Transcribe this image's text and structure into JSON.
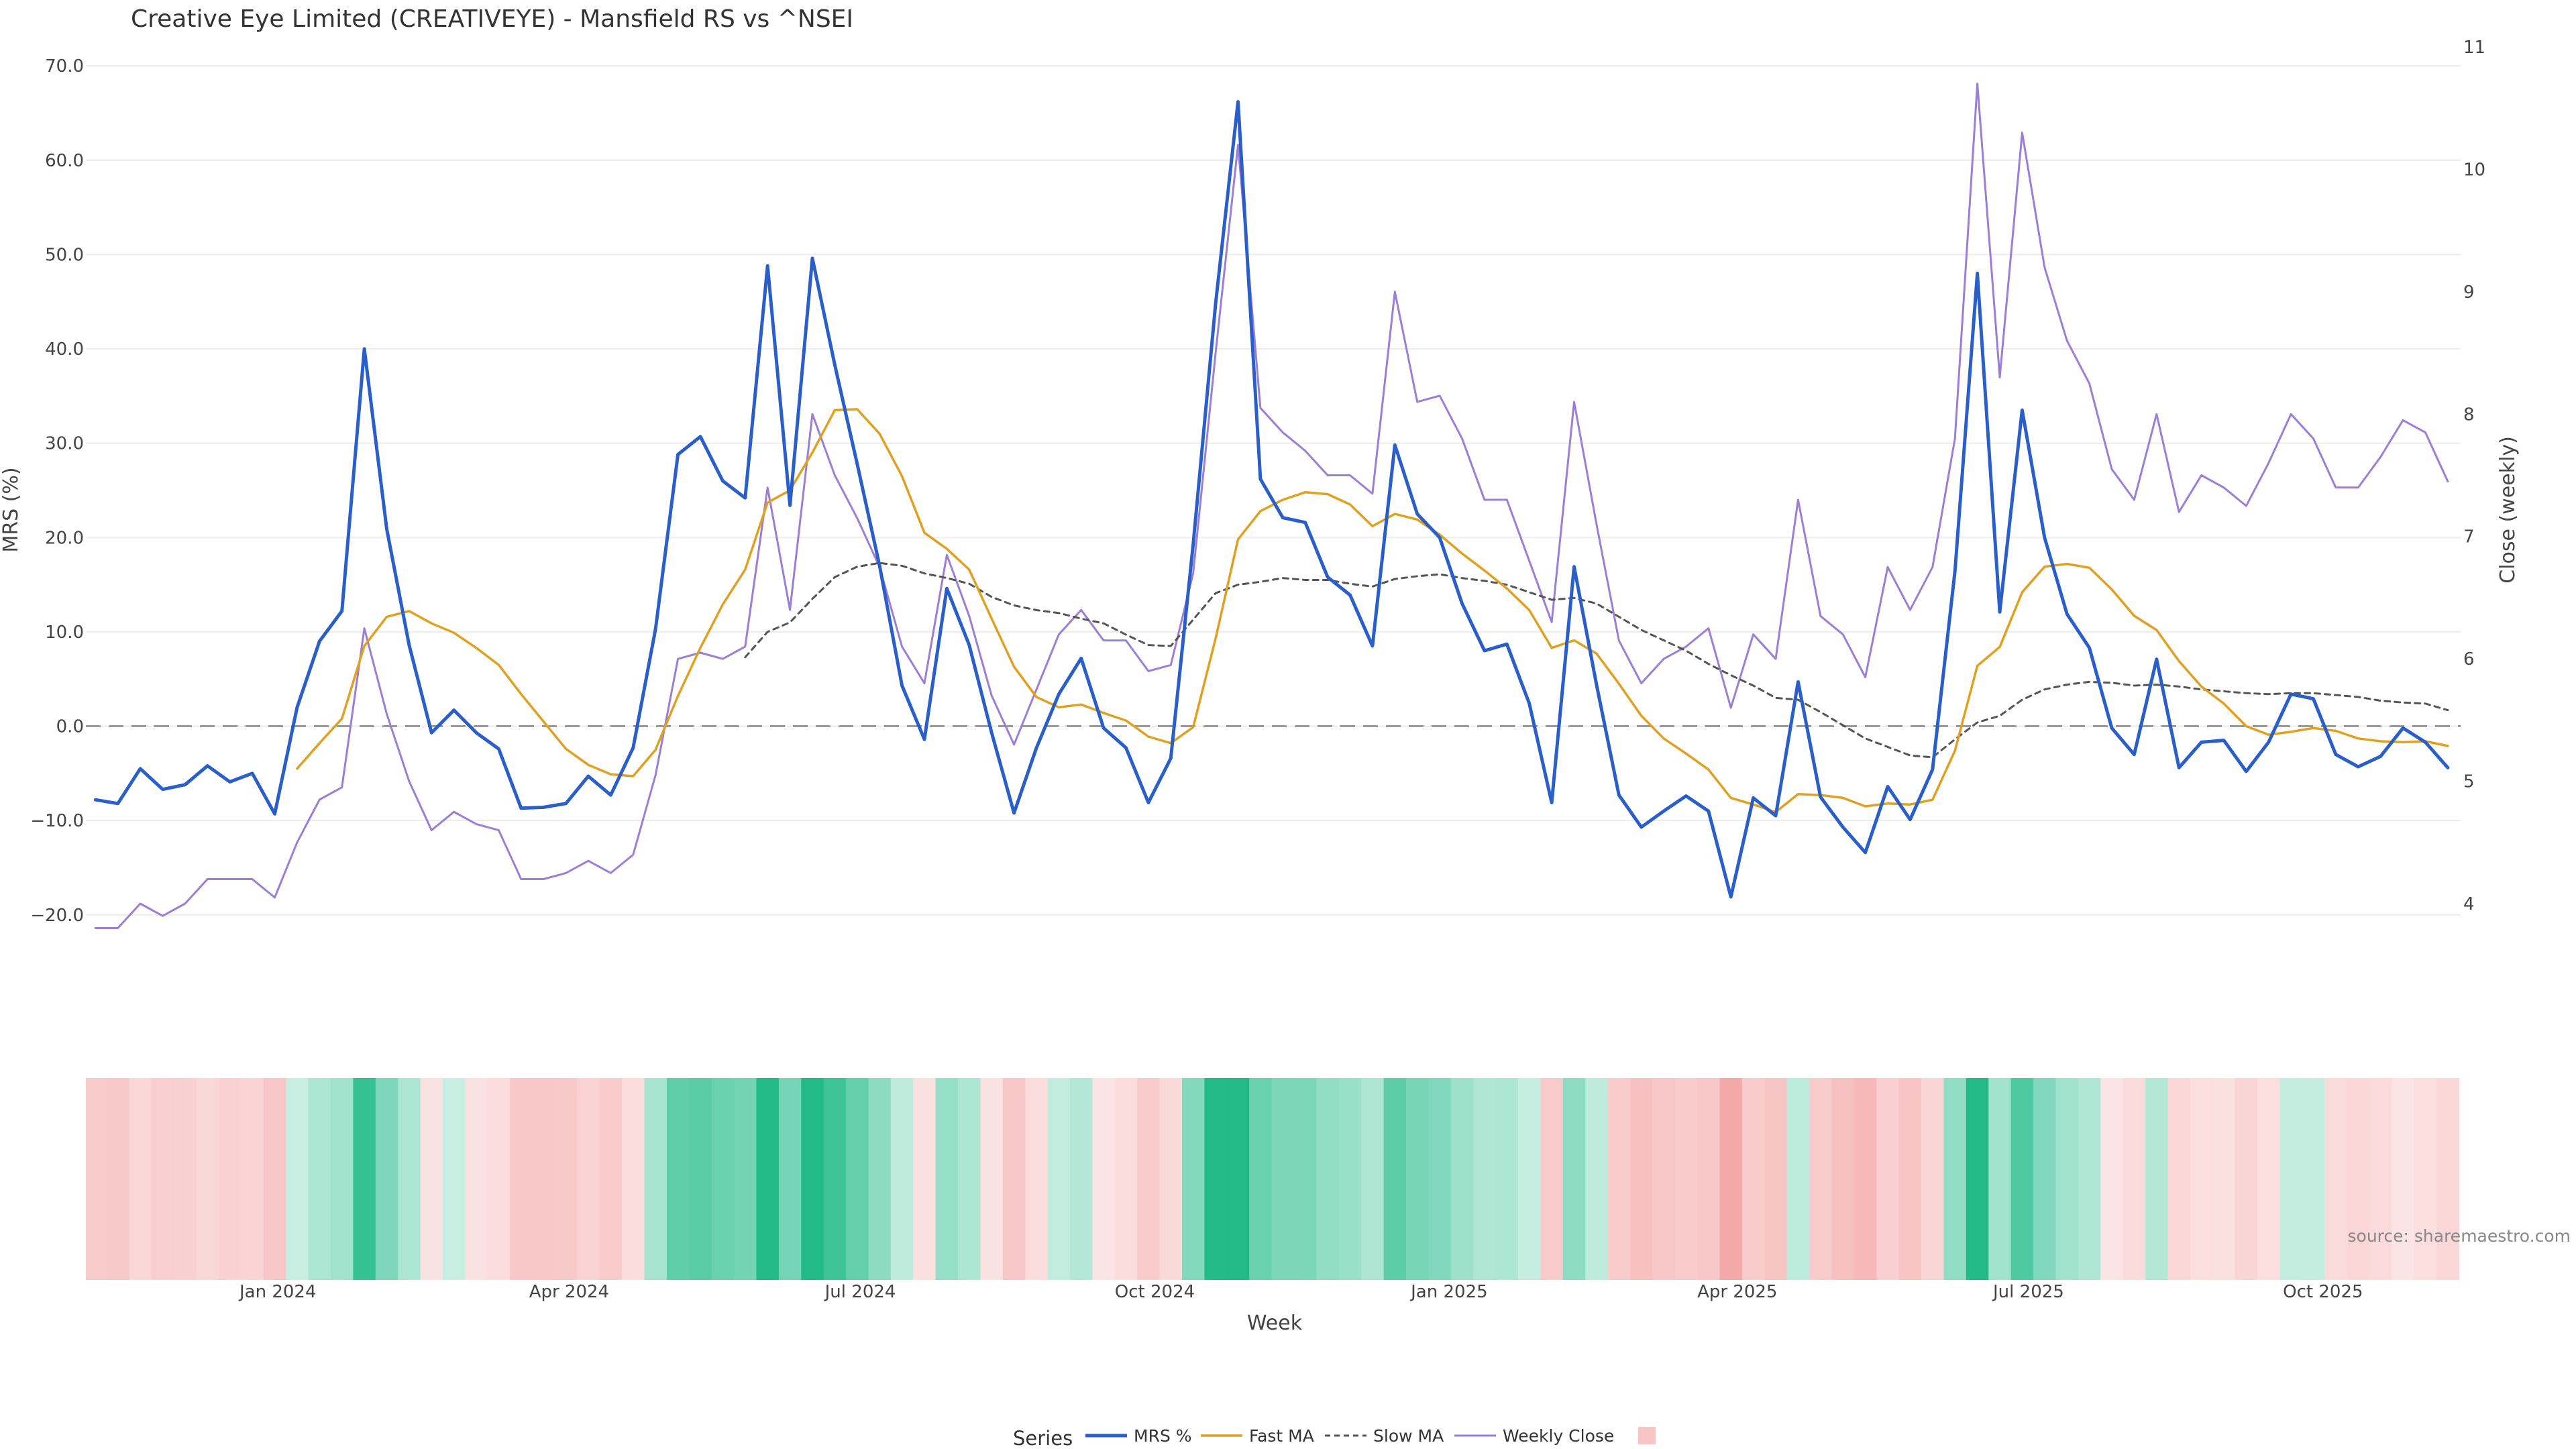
{
  "title": "Creative Eye Limited (CREATIVEYE) - Mansfield RS vs ^NSEI",
  "source": "source: sharemaestro.com",
  "colors": {
    "mrs": "#2a5fc9",
    "fast_ma": "#e0a020",
    "slow_ma": "#555555",
    "close": "#9b7fd6",
    "zero_line": "#999999",
    "grid": "#ececec",
    "positive": "#22bb88",
    "negative": "#f08888"
  },
  "legend": {
    "title": "Series",
    "items": [
      "MRS %",
      "Fast MA",
      "Slow MA",
      "Weekly Close",
      ""
    ]
  },
  "chart_data": {
    "type": "line",
    "x_dates": [
      "2023-11-05",
      "2023-11-12",
      "2023-11-19",
      "2023-11-26",
      "2023-12-03",
      "2023-12-10",
      "2023-12-17",
      "2023-12-24",
      "2023-12-31",
      "2024-01-07",
      "2024-01-14",
      "2024-01-21",
      "2024-01-28",
      "2024-02-04",
      "2024-02-11",
      "2024-02-18",
      "2024-02-25",
      "2024-03-03",
      "2024-03-10",
      "2024-03-17",
      "2024-03-24",
      "2024-03-31",
      "2024-04-07",
      "2024-04-14",
      "2024-04-21",
      "2024-04-28",
      "2024-05-05",
      "2024-05-12",
      "2024-05-19",
      "2024-05-26",
      "2024-06-02",
      "2024-06-09",
      "2024-06-16",
      "2024-06-23",
      "2024-06-30",
      "2024-07-07",
      "2024-07-14",
      "2024-07-21",
      "2024-07-28",
      "2024-08-04",
      "2024-08-11",
      "2024-08-18",
      "2024-08-25",
      "2024-09-01",
      "2024-09-08",
      "2024-09-15",
      "2024-09-22",
      "2024-09-29",
      "2024-10-06",
      "2024-10-13",
      "2024-10-20",
      "2024-10-27",
      "2024-11-03",
      "2024-11-10",
      "2024-11-17",
      "2024-11-24",
      "2024-12-01",
      "2024-12-08",
      "2024-12-15",
      "2024-12-22",
      "2024-12-29",
      "2025-01-05",
      "2025-01-12",
      "2025-01-19",
      "2025-01-26",
      "2025-02-02",
      "2025-02-09",
      "2025-02-16",
      "2025-02-23",
      "2025-03-02",
      "2025-03-09",
      "2025-03-16",
      "2025-03-23",
      "2025-03-30",
      "2025-04-06",
      "2025-04-13",
      "2025-04-20",
      "2025-04-27",
      "2025-05-04",
      "2025-05-11",
      "2025-05-18",
      "2025-05-25",
      "2025-06-01",
      "2025-06-08",
      "2025-06-15",
      "2025-06-22",
      "2025-06-29",
      "2025-07-06",
      "2025-07-13",
      "2025-07-20",
      "2025-07-27",
      "2025-08-03",
      "2025-08-10",
      "2025-08-17",
      "2025-08-24",
      "2025-08-31",
      "2025-09-07",
      "2025-09-14",
      "2025-09-21",
      "2025-09-28",
      "2025-10-05",
      "2025-10-12",
      "2025-10-19",
      "2025-10-26",
      "2025-11-02",
      "2025-11-09"
    ],
    "x_axis": {
      "label": "Week",
      "range": [
        "2023-11-02",
        "2025-11-13"
      ],
      "ticks": [
        {
          "date": "2024-01-01",
          "label": "Jan 2024"
        },
        {
          "date": "2024-04-01",
          "label": "Apr 2024"
        },
        {
          "date": "2024-07-01",
          "label": "Jul 2024"
        },
        {
          "date": "2024-10-01",
          "label": "Oct 2024"
        },
        {
          "date": "2025-01-01",
          "label": "Jan 2025"
        },
        {
          "date": "2025-04-01",
          "label": "Apr 2025"
        },
        {
          "date": "2025-07-01",
          "label": "Jul 2025"
        },
        {
          "date": "2025-10-01",
          "label": "Oct 2025"
        }
      ]
    },
    "y_left": {
      "label": "MRS (%)",
      "range": [
        -24,
        72
      ],
      "ticks": [
        70,
        60,
        50,
        40,
        30,
        20,
        10,
        0,
        -10,
        -20
      ],
      "tick_labels": [
        "70.0",
        "60.0",
        "50.0",
        "40.0",
        "30.0",
        "20.0",
        "10.0",
        "0.0",
        "−10.0",
        "−20.0"
      ]
    },
    "y_right": {
      "label": "Close (weekly)",
      "range": [
        3.6,
        11
      ],
      "ticks": [
        11,
        10,
        9,
        8,
        7,
        6,
        5,
        4
      ],
      "tick_labels": [
        "11",
        "10",
        "9",
        "8",
        "7",
        "6",
        "5",
        "4"
      ]
    },
    "reference_line": 0,
    "series": [
      {
        "name": "MRS %",
        "axis": "left",
        "style": "solid",
        "values": [
          -7.8,
          -8.2,
          -4.5,
          -6.7,
          -6.2,
          -4.2,
          -5.9,
          -5.0,
          -9.3,
          2.0,
          9.0,
          12.2,
          40.0,
          20.9,
          8.6,
          -0.7,
          1.7,
          -0.7,
          -2.4,
          -8.7,
          -8.6,
          -8.2,
          -5.3,
          -7.3,
          -2.3,
          10.3,
          28.8,
          30.7,
          26.0,
          24.2,
          48.8,
          23.4,
          49.6,
          38.3,
          27.8,
          17.0,
          4.3,
          -1.4,
          14.6,
          8.6,
          -0.7,
          -9.2,
          -2.3,
          3.4,
          7.2,
          -0.2,
          -2.3,
          -8.1,
          -3.4,
          19.3,
          44.8,
          66.2,
          26.2,
          22.1,
          21.6,
          15.8,
          13.9,
          8.5,
          29.8,
          22.5,
          20.0,
          13.0,
          8.0,
          8.7,
          2.4,
          -8.1,
          16.9,
          4.4,
          -7.3,
          -10.7,
          -9.0,
          -7.4,
          -9.0,
          -18.1,
          -7.6,
          -9.5,
          4.7,
          -7.5,
          -10.7,
          -13.4,
          -6.4,
          -9.9,
          -4.6,
          16.4,
          48.0,
          12.1,
          33.5,
          20.0,
          11.9,
          8.3,
          -0.2,
          -3.0,
          7.1,
          -4.4,
          -1.7,
          -1.5,
          -4.8,
          -1.7,
          3.4,
          2.9,
          -3.0,
          -4.3,
          -3.2,
          -0.2,
          -1.7,
          -4.4
        ]
      },
      {
        "name": "Fast MA",
        "axis": "left",
        "style": "solid",
        "values": [
          null,
          null,
          null,
          null,
          null,
          null,
          null,
          null,
          null,
          -4.5,
          -1.8,
          0.8,
          8.5,
          11.6,
          12.2,
          10.9,
          9.9,
          8.3,
          6.5,
          3.4,
          0.5,
          -2.4,
          -4.1,
          -5.1,
          -5.3,
          -2.5,
          3.2,
          8.3,
          12.9,
          16.6,
          23.7,
          25.0,
          29.0,
          33.5,
          33.6,
          31.0,
          26.5,
          20.5,
          18.8,
          16.6,
          11.4,
          6.3,
          3.1,
          2.0,
          2.3,
          1.4,
          0.6,
          -1.1,
          -1.8,
          -0.1,
          9.3,
          19.8,
          22.8,
          24.0,
          24.8,
          24.6,
          23.5,
          21.2,
          22.5,
          21.9,
          20.3,
          18.3,
          16.5,
          14.6,
          12.3,
          8.3,
          9.1,
          7.7,
          4.5,
          1.1,
          -1.3,
          -2.9,
          -4.6,
          -7.6,
          -8.3,
          -9.1,
          -7.2,
          -7.3,
          -7.6,
          -8.5,
          -8.2,
          -8.3,
          -7.8,
          -2.6,
          6.4,
          8.4,
          14.2,
          16.9,
          17.2,
          16.8,
          14.5,
          11.7,
          10.2,
          6.9,
          4.2,
          2.4,
          0.0,
          -0.9,
          -0.6,
          -0.2,
          -0.5,
          -1.3,
          -1.6,
          -1.7,
          -1.6,
          -2.1
        ]
      },
      {
        "name": "Slow MA",
        "axis": "left",
        "style": "dashed",
        "values": [
          null,
          null,
          null,
          null,
          null,
          null,
          null,
          null,
          null,
          null,
          null,
          null,
          null,
          null,
          null,
          null,
          null,
          null,
          null,
          null,
          null,
          null,
          null,
          null,
          null,
          null,
          null,
          null,
          null,
          7.3,
          10.0,
          11.0,
          13.5,
          15.8,
          16.9,
          17.3,
          17.0,
          16.2,
          15.7,
          15.1,
          13.7,
          12.8,
          12.3,
          12.0,
          11.4,
          10.9,
          9.7,
          8.6,
          8.5,
          11.3,
          14.1,
          15.0,
          15.3,
          15.7,
          15.5,
          15.5,
          15.1,
          14.8,
          15.6,
          15.9,
          16.1,
          15.7,
          15.4,
          15.0,
          14.2,
          13.4,
          13.6,
          13.0,
          11.6,
          10.2,
          9.1,
          8.0,
          6.6,
          5.4,
          4.3,
          3.0,
          2.8,
          1.5,
          0.1,
          -1.3,
          -2.2,
          -3.1,
          -3.3,
          -1.4,
          0.4,
          1.1,
          2.8,
          3.9,
          4.4,
          4.7,
          4.6,
          4.3,
          4.4,
          4.2,
          3.9,
          3.7,
          3.5,
          3.4,
          3.5,
          3.5,
          3.3,
          3.1,
          2.7,
          2.5,
          2.4,
          1.7
        ]
      },
      {
        "name": "Weekly Close",
        "axis": "right",
        "style": "solid",
        "values": [
          3.8,
          3.8,
          4.0,
          3.9,
          4.0,
          4.2,
          4.2,
          4.2,
          4.05,
          4.5,
          4.85,
          4.95,
          6.25,
          5.55,
          5.0,
          4.6,
          4.75,
          4.65,
          4.6,
          4.2,
          4.2,
          4.25,
          4.35,
          4.25,
          4.4,
          5.05,
          6.0,
          6.05,
          6.0,
          6.1,
          7.4,
          6.4,
          8.0,
          7.5,
          7.15,
          6.75,
          6.1,
          5.8,
          6.85,
          6.35,
          5.7,
          5.3,
          5.75,
          6.2,
          6.4,
          6.15,
          6.15,
          5.9,
          5.95,
          6.7,
          8.5,
          10.2,
          8.05,
          7.85,
          7.7,
          7.5,
          7.5,
          7.35,
          9.0,
          8.1,
          8.15,
          7.8,
          7.3,
          7.3,
          6.8,
          6.3,
          8.1,
          7.1,
          6.15,
          5.8,
          6.0,
          6.1,
          6.25,
          5.6,
          6.2,
          6.0,
          7.3,
          6.35,
          6.2,
          5.85,
          6.75,
          6.4,
          6.75,
          7.8,
          10.7,
          8.3,
          10.3,
          9.2,
          8.6,
          8.25,
          7.55,
          7.3,
          8.0,
          7.2,
          7.5,
          7.4,
          7.25,
          7.6,
          8.0,
          7.8,
          7.4,
          7.4,
          7.65,
          7.95,
          7.85,
          7.45
        ]
      }
    ],
    "heatmap_strip": {
      "description_values": "MRS % per week, colored green when positive and red when negative",
      "source_series": "MRS %"
    }
  }
}
